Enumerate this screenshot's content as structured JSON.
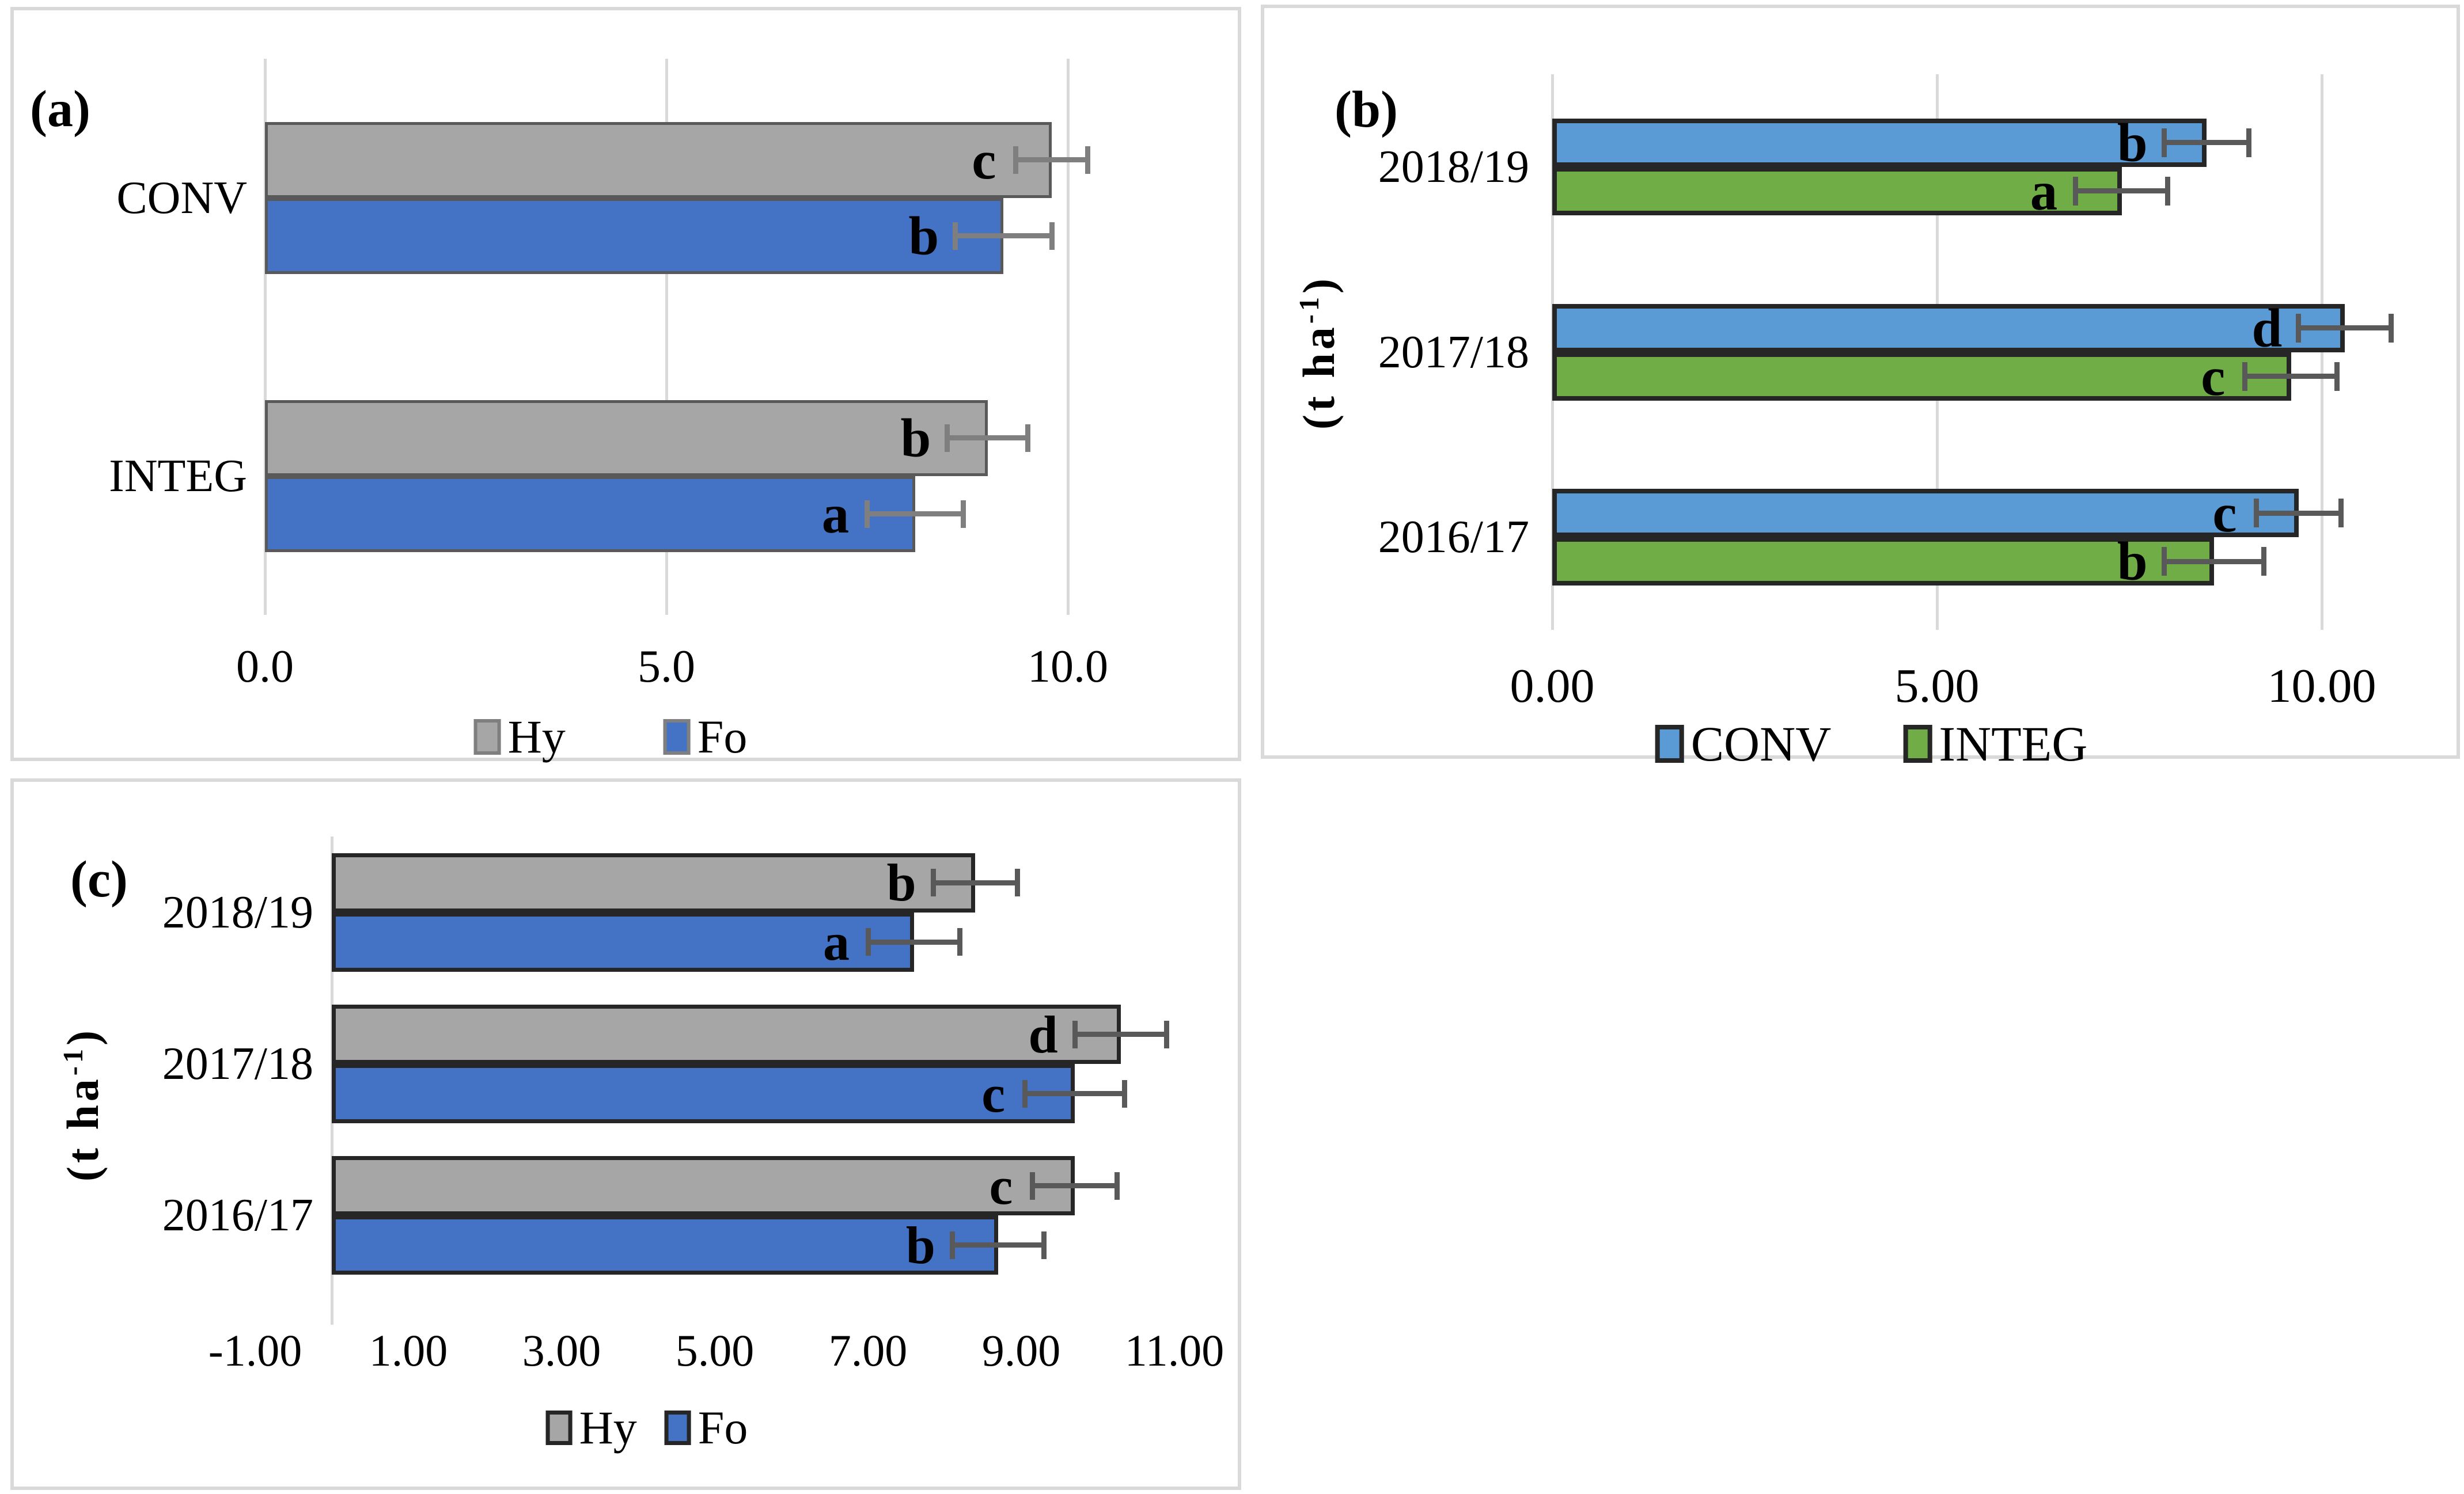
{
  "figure": {
    "background_color": "#ffffff",
    "panel_border_color": "#d9d9d9",
    "gridline_color": "#d9d9d9"
  },
  "chart_data": [
    {
      "id": "a",
      "panel_label": "(a)",
      "type": "bar",
      "orientation": "horizontal",
      "categories": [
        "CONV",
        "INTEG"
      ],
      "series": [
        {
          "name": "Hy",
          "color": "#a6a6a6",
          "border_color": "#595959",
          "values": [
            9.8,
            9.0
          ],
          "errors": [
            0.45,
            0.5
          ],
          "letters": [
            "c",
            "b"
          ]
        },
        {
          "name": "Fo",
          "color": "#4472c4",
          "border_color": "#595959",
          "values": [
            9.2,
            8.1
          ],
          "errors": [
            0.6,
            0.6
          ],
          "letters": [
            "b",
            "a"
          ]
        }
      ],
      "xlim": [
        0,
        11.9
      ],
      "ticks": [
        {
          "label": "0.0",
          "value": 0
        },
        {
          "label": "5.0",
          "value": 5
        },
        {
          "label": "10.0",
          "value": 10
        }
      ],
      "gridlines": [
        0,
        5,
        10
      ],
      "grid_on": true,
      "y_axis_title": null,
      "legend": [
        "Hy",
        "Fo"
      ],
      "legend_position": "bottom",
      "error_bar_color": "#7f7f7f"
    },
    {
      "id": "b",
      "panel_label": "(b)",
      "type": "bar",
      "orientation": "horizontal",
      "categories": [
        "2018/19",
        "2017/18",
        "2016/17"
      ],
      "series": [
        {
          "name": "CONV",
          "color": "#5b9bd5",
          "border_color": "#262626",
          "values": [
            8.5,
            10.3,
            9.7
          ],
          "errors": [
            0.55,
            0.6,
            0.55
          ],
          "letters": [
            "b",
            "d",
            "c"
          ]
        },
        {
          "name": "INTEG",
          "color": "#70ad47",
          "border_color": "#262626",
          "values": [
            7.4,
            9.6,
            8.6
          ],
          "errors": [
            0.6,
            0.6,
            0.65
          ],
          "letters": [
            "a",
            "c",
            "b"
          ]
        }
      ],
      "xlim": [
        0,
        11.6
      ],
      "ticks": [
        {
          "label": "0.00",
          "value": 0
        },
        {
          "label": "5.00",
          "value": 5
        },
        {
          "label": "10.00",
          "value": 10
        }
      ],
      "gridlines": [
        0,
        5,
        10
      ],
      "grid_on": true,
      "y_axis_title": {
        "base": "(t ha",
        "sup": "-1",
        "close": ")"
      },
      "legend": [
        "CONV",
        "INTEG"
      ],
      "legend_position": "bottom",
      "error_bar_color": "#595959"
    },
    {
      "id": "c",
      "panel_label": "(c)",
      "type": "bar",
      "orientation": "horizontal",
      "categories": [
        "2018/19",
        "2017/18",
        "2016/17"
      ],
      "series": [
        {
          "name": "Hy",
          "color": "#a6a6a6",
          "border_color": "#262626",
          "values": [
            8.4,
            10.3,
            9.7
          ],
          "errors": [
            0.55,
            0.6,
            0.55
          ],
          "letters": [
            "b",
            "d",
            "c"
          ]
        },
        {
          "name": "Fo",
          "color": "#4472c4",
          "border_color": "#262626",
          "values": [
            7.6,
            9.7,
            8.7
          ],
          "errors": [
            0.6,
            0.65,
            0.6
          ],
          "letters": [
            "a",
            "c",
            "b"
          ]
        }
      ],
      "xlim": [
        -1,
        11.6
      ],
      "ticks": [
        {
          "label": "-1.00",
          "value": -1
        },
        {
          "label": "1.00",
          "value": 1
        },
        {
          "label": "3.00",
          "value": 3
        },
        {
          "label": "5.00",
          "value": 5
        },
        {
          "label": "7.00",
          "value": 7
        },
        {
          "label": "9.00",
          "value": 9
        },
        {
          "label": "11.00",
          "value": 11
        }
      ],
      "gridlines": [
        0
      ],
      "grid_on": false,
      "y_axis_title": {
        "base": "(t ha",
        "sup": "-1",
        "close": ")"
      },
      "legend": [
        "Hy",
        "Fo"
      ],
      "legend_position": "bottom",
      "error_bar_color": "#595959"
    }
  ]
}
